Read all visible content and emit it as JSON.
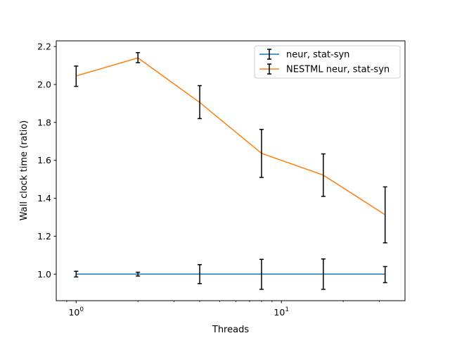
{
  "chart_data": {
    "type": "line",
    "xlabel": "Threads",
    "ylabel": "Wall clock time (ratio)",
    "x_scale": "log",
    "x": [
      1,
      2,
      4,
      8,
      16,
      32
    ],
    "xlim": [
      0.8,
      40
    ],
    "ylim": [
      0.86,
      2.23
    ],
    "x_ticks": [
      {
        "value": 1,
        "base": "10",
        "exp": "0"
      },
      {
        "value": 10,
        "base": "10",
        "exp": "1"
      }
    ],
    "y_ticks": [
      1.0,
      1.2,
      1.4,
      1.6,
      1.8,
      2.0,
      2.2
    ],
    "y_tick_labels": [
      "1.0",
      "1.2",
      "1.4",
      "1.6",
      "1.8",
      "2.0",
      "2.2"
    ],
    "grid": false,
    "legend_position": "top-right",
    "series": [
      {
        "name": "neur, stat-syn",
        "color": "#1f77b4",
        "values": [
          1.0,
          1.0,
          1.0,
          1.0,
          1.0,
          1.0
        ],
        "err_low": [
          0.985,
          0.99,
          0.95,
          0.92,
          0.92,
          0.955
        ],
        "err_high": [
          1.015,
          1.01,
          1.05,
          1.078,
          1.08,
          1.04
        ]
      },
      {
        "name": "NESTML neur, stat-syn",
        "color": "#ff7f0e",
        "values": [
          2.045,
          2.14,
          1.905,
          1.637,
          1.522,
          1.313
        ],
        "err_low": [
          1.99,
          2.115,
          1.82,
          1.51,
          1.41,
          1.165
        ],
        "err_high": [
          2.097,
          2.168,
          1.994,
          1.763,
          1.634,
          1.46
        ]
      }
    ]
  }
}
